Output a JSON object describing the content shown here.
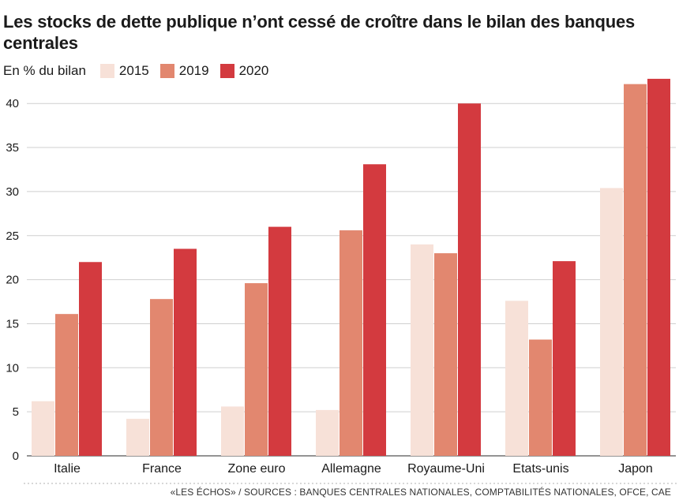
{
  "chart_data": {
    "type": "bar",
    "title": "Les stocks de dette publique n’ont cessé de croître dans le bilan des banques centrales",
    "ylabel": "En % du bilan",
    "categories": [
      "Italie",
      "France",
      "Zone euro",
      "Allemagne",
      "Royaume-Uni",
      "Etats-unis",
      "Japon"
    ],
    "series": [
      {
        "name": "2015",
        "color": "#f7e1d8",
        "values": [
          6.2,
          4.2,
          5.6,
          5.2,
          24.0,
          17.6,
          30.4
        ]
      },
      {
        "name": "2019",
        "color": "#e2876f",
        "values": [
          16.1,
          17.8,
          19.6,
          25.6,
          23.0,
          13.2,
          42.2
        ]
      },
      {
        "name": "2020",
        "color": "#d33a3f",
        "values": [
          22.0,
          23.5,
          26.0,
          33.1,
          40.0,
          22.1,
          42.8
        ]
      }
    ],
    "ylim": [
      0,
      45
    ],
    "yticks": [
      0,
      5,
      10,
      15,
      20,
      25,
      30,
      35,
      40
    ],
    "grid": true,
    "legend": "top-left"
  },
  "source": "«LES ÉCHOS» / SOURCES : BANQUES CENTRALES NATIONALES, COMPTABILITÉS NATIONALES, OFCE, CAE"
}
